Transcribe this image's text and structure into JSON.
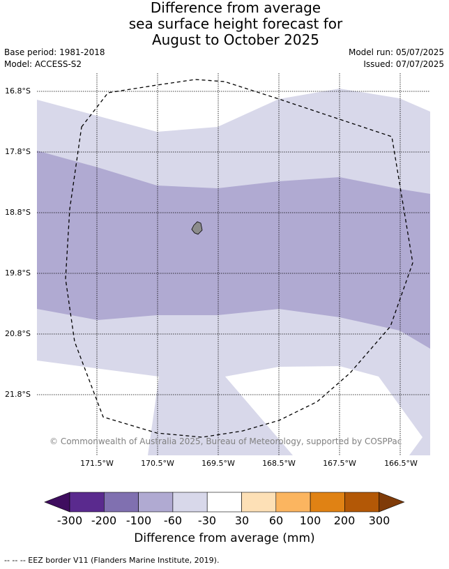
{
  "title": {
    "line1": "Difference from average",
    "line2": "sea surface height forecast for",
    "line3": "August to October 2025"
  },
  "info": {
    "base_period": "Base period: 1981-2018",
    "model": "Model: ACCESS-S2",
    "model_run": "Model run: 05/07/2025",
    "issued": "Issued: 07/07/2025"
  },
  "map": {
    "latitudes": [
      "16.8°S",
      "17.8°S",
      "18.8°S",
      "19.8°S",
      "20.8°S",
      "21.8°S"
    ],
    "longitudes": [
      "171.5°W",
      "170.5°W",
      "169.5°W",
      "168.5°W",
      "167.5°W",
      "166.5°W"
    ],
    "copyright": "© Commonwealth of Australia 2025, Bureau of Meteorology, supported by COSPPac",
    "colors": {
      "band_-60_-30": "#d8d8ea",
      "band_-100_-60": "#b0aad2",
      "land": "#8c8c8c",
      "eez_line": "#000000"
    }
  },
  "colorbar": {
    "title": "Difference from average (mm)",
    "tick_labels": [
      "-300",
      "-200",
      "-100",
      "-60",
      "-30",
      "30",
      "60",
      "100",
      "200",
      "300"
    ],
    "colors": [
      "#3f0d5f",
      "#5a2a8e",
      "#8070b0",
      "#b0aad2",
      "#d8d8ea",
      "#ffffff",
      "#fde0b6",
      "#fbb560",
      "#e08214",
      "#b35806",
      "#7f3b08"
    ]
  },
  "footnote": "--  --  -- EEZ border V11 (Flanders Marine Institute, 2019)."
}
